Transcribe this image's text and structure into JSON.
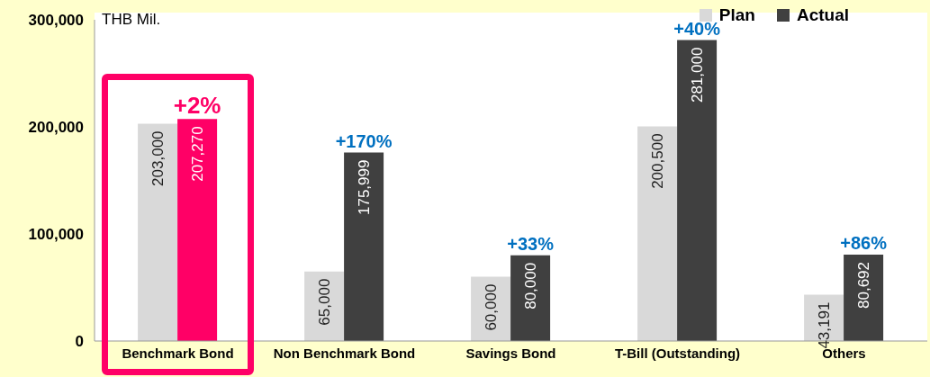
{
  "chart_data": {
    "type": "bar",
    "categories": [
      "Benchmark Bond",
      "Non Benchmark Bond",
      "Savings Bond",
      "T-Bill (Outstanding)",
      "Others"
    ],
    "series": [
      {
        "name": "Plan",
        "color": "#d9d9d9",
        "values": [
          203000,
          65000,
          60000,
          200500,
          43191
        ],
        "value_labels": [
          "203,000",
          "65,000",
          "60,000",
          "200,500",
          "43,191"
        ]
      },
      {
        "name": "Actual",
        "color": "#404040",
        "colors": [
          "#ff0066",
          "#404040",
          "#404040",
          "#404040",
          "#404040"
        ],
        "values": [
          207270,
          175999,
          80000,
          281000,
          80692
        ],
        "value_labels": [
          "207,270",
          "175,999",
          "80,000",
          "281,000",
          "80,692"
        ]
      }
    ],
    "ylim": [
      0,
      300000
    ],
    "yticks": [
      {
        "value": 0,
        "label": "0"
      },
      {
        "value": 100000,
        "label": "100,000"
      },
      {
        "value": 200000,
        "label": "200,000"
      },
      {
        "value": 300000,
        "label": "300,000"
      }
    ],
    "legend": "top right",
    "annotations": [
      "THB Mil.",
      {
        "text": "+2%",
        "x": "Benchmark Bond",
        "y": 207270
      },
      {
        "text": "+170%",
        "x": "Non Benchmark Bond",
        "y": 175999
      },
      {
        "text": "+33%",
        "x": "Savings Bond",
        "y": 80000
      },
      {
        "text": "+40%",
        "x": "T-Bill (Outstanding)",
        "y": 281000
      },
      {
        "text": "+86%",
        "x": "Others",
        "y": 80692
      }
    ]
  }
}
